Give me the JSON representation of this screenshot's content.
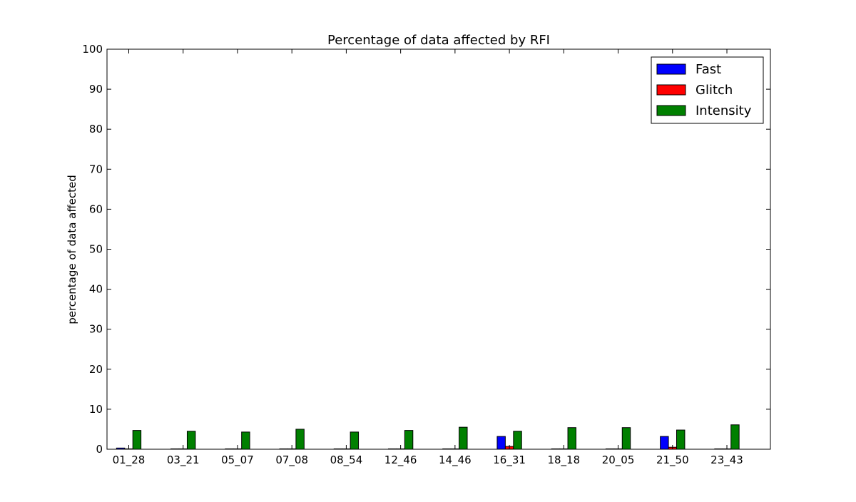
{
  "chart_data": {
    "type": "bar",
    "title": "Percentage of data affected by RFI",
    "xlabel": "",
    "ylabel": "percentage of data affected",
    "ylim": [
      0,
      100
    ],
    "yticks": [
      0,
      10,
      20,
      30,
      40,
      50,
      60,
      70,
      80,
      90,
      100
    ],
    "grid": false,
    "legend_position": "top-right",
    "categories": [
      "01_28",
      "03_21",
      "05_07",
      "07_08",
      "08_54",
      "12_46",
      "14_46",
      "16_31",
      "18_18",
      "20_05",
      "21_50",
      "23_43"
    ],
    "series": [
      {
        "name": "Fast",
        "color": "#0000ff",
        "values": [
          0.3,
          0.1,
          0.1,
          0.1,
          0.1,
          0.1,
          0.1,
          3.2,
          0.1,
          0.1,
          3.2,
          0.1
        ]
      },
      {
        "name": "Glitch",
        "color": "#ff0000",
        "values": [
          0.1,
          0.1,
          0.1,
          0.1,
          0.1,
          0.1,
          0.1,
          0.7,
          0.1,
          0.1,
          0.5,
          0.1
        ]
      },
      {
        "name": "Intensity",
        "color": "#008000",
        "values": [
          4.7,
          4.5,
          4.3,
          5.0,
          4.3,
          4.7,
          5.5,
          4.5,
          5.4,
          5.4,
          4.8,
          6.1
        ]
      }
    ]
  }
}
